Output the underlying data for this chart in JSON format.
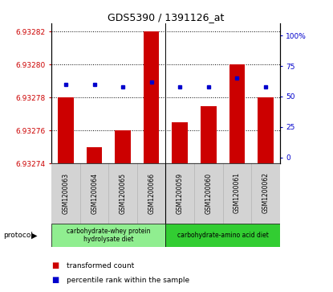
{
  "title": "GDS5390 / 1391126_at",
  "samples": [
    "GSM1200063",
    "GSM1200064",
    "GSM1200065",
    "GSM1200066",
    "GSM1200059",
    "GSM1200060",
    "GSM1200061",
    "GSM1200062"
  ],
  "red_values": [
    6.93278,
    6.93275,
    6.93276,
    6.93282,
    6.932765,
    6.932775,
    6.9328,
    6.93278
  ],
  "blue_values": [
    60,
    60,
    58,
    62,
    58,
    58,
    65,
    58
  ],
  "y_min": 6.93274,
  "y_max": 6.932825,
  "y_ticks_left": [
    6.93274,
    6.93276,
    6.93278,
    6.9328,
    6.93282
  ],
  "y_ticks_right": [
    0,
    25,
    50,
    75,
    100
  ],
  "bar_color": "#cc0000",
  "dot_color": "#0000cc",
  "protocol_label1": "carbohydrate-whey protein\nhydrolysate diet",
  "protocol_label2": "carbohydrate-amino acid diet",
  "protocol_color1": "#90ee90",
  "protocol_color2": "#32cd32",
  "tick_bg_color": "#d3d3d3",
  "legend_red_label": "transformed count",
  "legend_blue_label": "percentile rank within the sample"
}
